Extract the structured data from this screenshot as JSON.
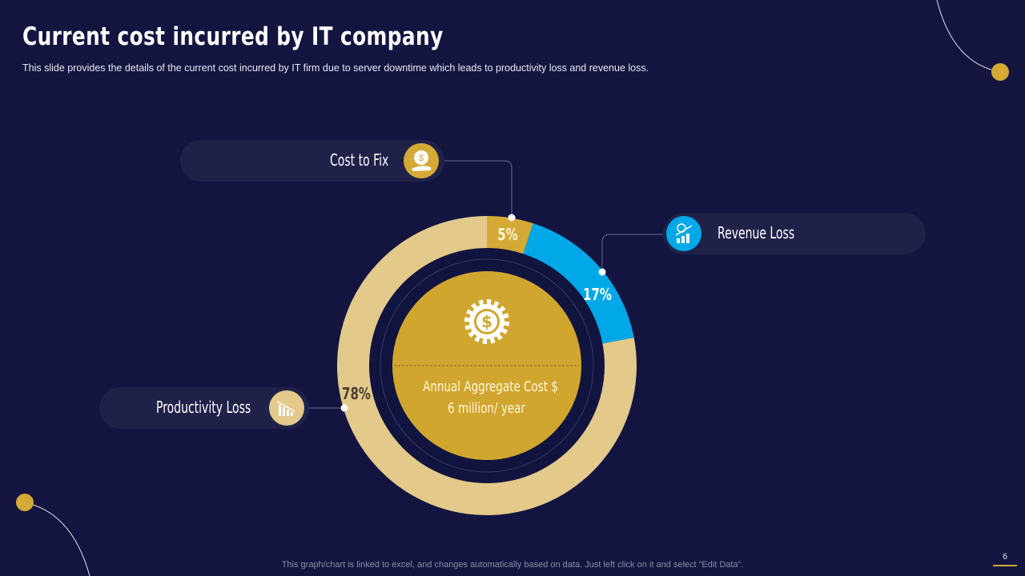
{
  "header": {
    "title": "Current cost incurred by IT company",
    "subtitle": "This slide provides  the details of the current cost incurred  by IT firm due to server  downtime  which leads to productivity  loss and revenue  loss."
  },
  "center": {
    "line1": "Annual Aggregate Cost $",
    "line2": "6 million/ year",
    "icon": "gear-dollar-icon"
  },
  "callouts": [
    {
      "label": "Cost to Fix",
      "icon": "money-bag-hand-icon"
    },
    {
      "label": "Revenue Loss",
      "icon": "growth-chart-icon"
    },
    {
      "label": "Productivity Loss",
      "icon": "declining-chart-icon"
    }
  ],
  "chart_data": {
    "type": "pie",
    "donut": true,
    "categories": [
      "Cost to Fix",
      "Revenue Loss",
      "Productivity Loss"
    ],
    "values": [
      5,
      17,
      78
    ],
    "labels": [
      "5%",
      "17%",
      "78%"
    ],
    "colors": [
      "#d4a935",
      "#00a8e8",
      "#e3c98a"
    ]
  },
  "footer": {
    "note": "This graph/chart is linked to excel,  and changes automatically based on data. Just left click on it and select “Edit Data”.",
    "page": "6"
  }
}
